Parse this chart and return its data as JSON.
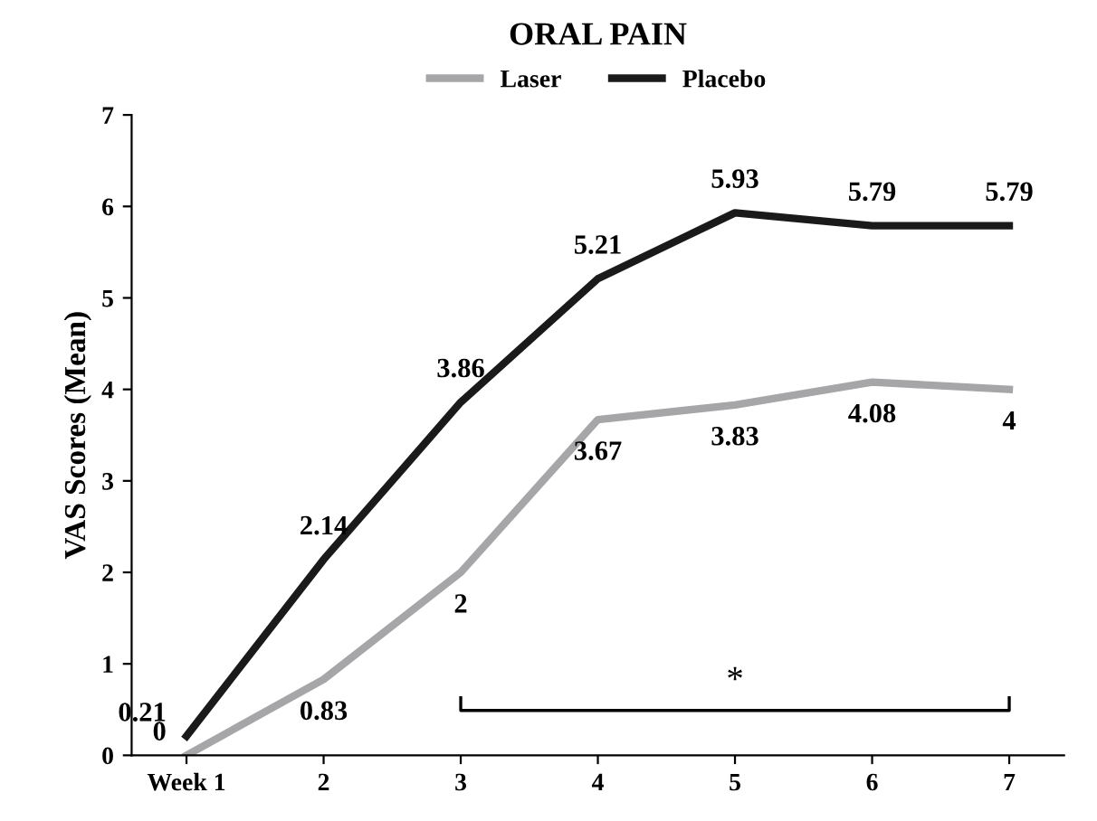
{
  "chart_data": {
    "type": "line",
    "title": "ORAL PAIN",
    "ylabel": "VAS Scores (Mean)",
    "categories": [
      "Week 1",
      "2",
      "3",
      "4",
      "5",
      "6",
      "7"
    ],
    "series": [
      {
        "name": "Laser",
        "color": "#a6a6a8",
        "values": [
          0,
          0.83,
          2,
          3.67,
          3.83,
          4.08,
          4
        ]
      },
      {
        "name": "Placebo",
        "color": "#1a1a1a",
        "values": [
          0.21,
          2.14,
          3.86,
          5.21,
          5.93,
          5.79,
          5.79
        ]
      }
    ],
    "ylim": [
      0,
      7
    ],
    "yticks": [
      0,
      1,
      2,
      3,
      4,
      5,
      6,
      7
    ],
    "data_labels": true,
    "legend": "top",
    "grid": false,
    "marker": "none",
    "line_style": "solid",
    "annotations": [
      "*"
    ]
  }
}
